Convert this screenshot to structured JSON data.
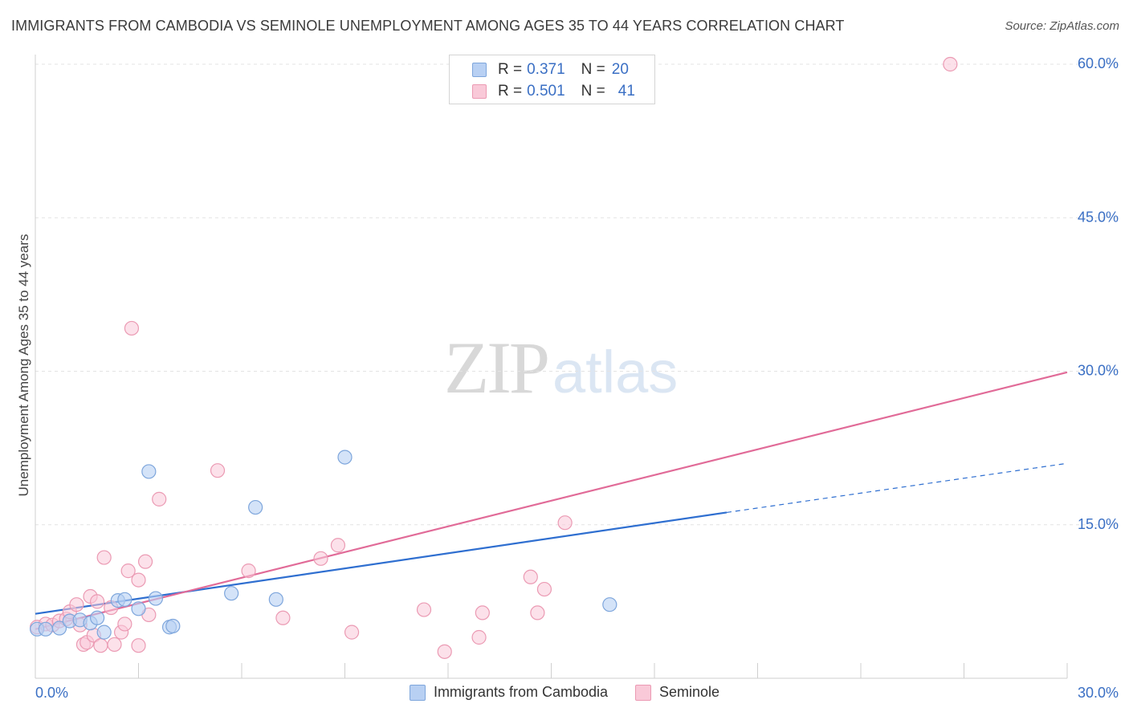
{
  "chart_data": {
    "type": "scatter",
    "title": "IMMIGRANTS FROM CAMBODIA VS SEMINOLE UNEMPLOYMENT AMONG AGES 35 TO 44 YEARS CORRELATION CHART",
    "source": "Source: ZipAtlas.com",
    "ylabel": "Unemployment Among Ages 35 to 44 years",
    "xlabel": "",
    "xlim": [
      0,
      30
    ],
    "ylim": [
      0,
      60
    ],
    "x_tick_labels": [
      "0.0%",
      "30.0%"
    ],
    "y_tick_labels": [
      "15.0%",
      "30.0%",
      "45.0%",
      "60.0%"
    ],
    "y_ticks": [
      15,
      30,
      45,
      60
    ],
    "watermark": {
      "zip": "ZIP",
      "atlas": "atlas"
    },
    "legend": {
      "r_label": "R =",
      "n_label": "N =",
      "entries": [
        {
          "name": "Immigrants from Cambodia",
          "r": "0.371",
          "n": "20"
        },
        {
          "name": "Seminole",
          "r": "0.501",
          "n": "41"
        }
      ]
    },
    "colors": {
      "blue_fill": "#b8d0f3",
      "blue_stroke": "#7ea6dc",
      "blue_line": "#2f6fd0",
      "pink_fill": "#f9c9d8",
      "pink_stroke": "#eb9ab3",
      "pink_line": "#e16b98",
      "tick_text": "#3a6fc4",
      "grid": "#e3e3e3"
    },
    "series": [
      {
        "name": "Immigrants from Cambodia",
        "points": [
          [
            0.05,
            4.8
          ],
          [
            0.3,
            4.8
          ],
          [
            0.7,
            4.9
          ],
          [
            1.0,
            5.6
          ],
          [
            1.3,
            5.7
          ],
          [
            1.6,
            5.4
          ],
          [
            1.8,
            5.9
          ],
          [
            2.0,
            4.5
          ],
          [
            2.4,
            7.6
          ],
          [
            2.6,
            7.7
          ],
          [
            3.0,
            6.8
          ],
          [
            3.3,
            20.2
          ],
          [
            3.5,
            7.8
          ],
          [
            3.9,
            5.0
          ],
          [
            4.0,
            5.1
          ],
          [
            5.7,
            8.3
          ],
          [
            6.4,
            16.7
          ],
          [
            7.0,
            7.7
          ],
          [
            9.0,
            21.6
          ],
          [
            16.7,
            7.2
          ]
        ],
        "trend": {
          "x_start": 0,
          "y_start": 6.3,
          "x_end": 20.1,
          "y_end": 16.2,
          "dashed_x_end": 30,
          "dashed_y_end": 21.0
        }
      },
      {
        "name": "Seminole",
        "points": [
          [
            0.05,
            5.0
          ],
          [
            0.3,
            5.3
          ],
          [
            0.5,
            5.2
          ],
          [
            0.7,
            5.6
          ],
          [
            0.9,
            5.8
          ],
          [
            1.0,
            6.5
          ],
          [
            1.2,
            7.2
          ],
          [
            1.3,
            5.2
          ],
          [
            1.4,
            3.3
          ],
          [
            1.5,
            3.5
          ],
          [
            1.6,
            8.0
          ],
          [
            1.7,
            4.2
          ],
          [
            1.8,
            7.5
          ],
          [
            1.9,
            3.2
          ],
          [
            2.0,
            11.8
          ],
          [
            2.2,
            6.9
          ],
          [
            2.3,
            3.3
          ],
          [
            2.5,
            4.5
          ],
          [
            2.6,
            5.3
          ],
          [
            2.7,
            10.5
          ],
          [
            2.8,
            34.2
          ],
          [
            3.0,
            9.6
          ],
          [
            3.0,
            3.2
          ],
          [
            3.2,
            11.4
          ],
          [
            3.3,
            6.2
          ],
          [
            3.6,
            17.5
          ],
          [
            5.3,
            20.3
          ],
          [
            6.2,
            10.5
          ],
          [
            7.2,
            5.9
          ],
          [
            8.3,
            11.7
          ],
          [
            8.8,
            13.0
          ],
          [
            9.2,
            4.5
          ],
          [
            11.3,
            6.7
          ],
          [
            11.9,
            2.6
          ],
          [
            12.9,
            4.0
          ],
          [
            13.0,
            6.4
          ],
          [
            14.4,
            9.9
          ],
          [
            14.6,
            6.4
          ],
          [
            14.8,
            8.7
          ],
          [
            15.4,
            15.2
          ],
          [
            26.6,
            60.0
          ]
        ],
        "trend": {
          "x_start": 0,
          "y_start": 4.8,
          "x_end": 30,
          "y_end": 29.9
        }
      }
    ]
  }
}
